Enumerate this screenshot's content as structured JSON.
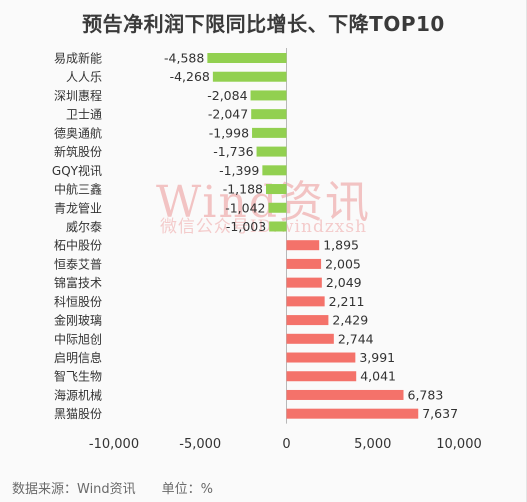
{
  "colors": {
    "negative": "#92d050",
    "positive": "#f4726a",
    "zero_line": "#b8b8b8"
  },
  "watermark": {
    "brand": "Wind资讯",
    "sub": "微信公众号ID:windzxsh"
  },
  "footer": {
    "source": "数据来源：Wind资讯",
    "unit": "单位：%"
  },
  "chart_data": {
    "type": "bar",
    "orientation": "horizontal",
    "title": "预告净利润下限同比增长、下降TOP10",
    "categories": [
      "易成新能",
      "人人乐",
      "深圳惠程",
      "卫士通",
      "德奥通航",
      "新筑股份",
      "GQY视讯",
      "中航三鑫",
      "青龙管业",
      "威尔泰",
      "柘中股份",
      "恒泰艾普",
      "锦富技术",
      "科恒股份",
      "金刚玻璃",
      "中际旭创",
      "启明信息",
      "智飞生物",
      "海源机械",
      "黑猫股份"
    ],
    "values": [
      -4588,
      -4268,
      -2084,
      -2047,
      -1998,
      -1736,
      -1399,
      -1188,
      -1042,
      -1003,
      1895,
      2005,
      2049,
      2211,
      2429,
      2744,
      3991,
      4041,
      6783,
      7637
    ],
    "value_labels": [
      "-4,588",
      "-4,268",
      "-2,084",
      "-2,047",
      "-1,998",
      "-1,736",
      "-1,399",
      "-1,188",
      "-1,042",
      "-1,003",
      "1,895",
      "2,005",
      "2,049",
      "2,211",
      "2,429",
      "2,744",
      "3,991",
      "4,041",
      "6,783",
      "7,637"
    ],
    "xlim": [
      -10000,
      10000
    ],
    "xticks": [
      -10000,
      -5000,
      0,
      5000,
      10000
    ],
    "xtick_labels": [
      "-10,000",
      "-5,000",
      "0",
      "5,000",
      "10,000"
    ],
    "grid": false,
    "legend": false
  }
}
